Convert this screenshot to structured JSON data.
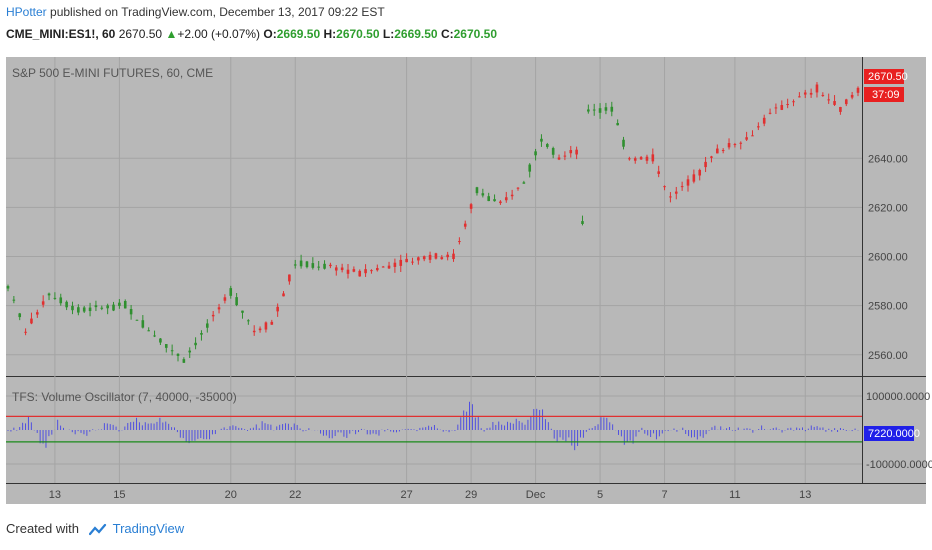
{
  "header": {
    "author": "HPotter",
    "published": " published on TradingView.com, December 13, 2017 09:22 EST",
    "symbol": "CME_MINI:ES1!, 60",
    "last": "2670.50",
    "change_arrow": "▲",
    "change": "+2.00 (+0.07%)",
    "o_label": "O:",
    "o_val": "2669.50",
    "h_label": "H:",
    "h_val": "2670.50",
    "l_label": "L:",
    "l_val": "2669.50",
    "c_label": "C:",
    "c_val": "2670.50"
  },
  "footer": {
    "created": "Created with",
    "brand": "TradingView"
  },
  "colors": {
    "up": "#2f8f2f",
    "down": "#e03030",
    "osc": "#5050e0",
    "upper": "#e03030",
    "lower": "#1a8a1a",
    "panel": "#b8b8b8",
    "grid": "#a4a4a4"
  },
  "chart_data": [
    {
      "type": "candlestick",
      "title": "S&P 500 E-MINI FUTURES, 60, CME",
      "y_ticks": [
        "2640.00",
        "2620.00",
        "2600.00",
        "2580.00",
        "2560.00"
      ],
      "y_tick_values": [
        2640,
        2620,
        2600,
        2580,
        2560
      ],
      "ylim": [
        2553,
        2680
      ],
      "price_label": "2670.50",
      "countdown_label": "37:09",
      "x_ticks": [
        "13",
        "15",
        "20",
        "22",
        "27",
        "29",
        "Dec",
        "5",
        "7",
        "11",
        "13"
      ],
      "x_tick_index": [
        8,
        19,
        38,
        49,
        68,
        79,
        90,
        101,
        112,
        124,
        136
      ],
      "n_bars": 146,
      "path": [
        [
          0,
          2588,
          1
        ],
        [
          3,
          2570,
          0
        ],
        [
          7,
          2585,
          1
        ],
        [
          12,
          2578,
          1
        ],
        [
          20,
          2580,
          1
        ],
        [
          24,
          2570,
          1
        ],
        [
          30,
          2558,
          1
        ],
        [
          35,
          2575,
          0
        ],
        [
          38,
          2586,
          1
        ],
        [
          42,
          2570,
          0
        ],
        [
          45,
          2573,
          0
        ],
        [
          49,
          2597,
          1
        ],
        [
          55,
          2596,
          0
        ],
        [
          60,
          2593,
          0
        ],
        [
          66,
          2597,
          0
        ],
        [
          72,
          2600,
          0
        ],
        [
          76,
          2600,
          0
        ],
        [
          80,
          2627,
          1
        ],
        [
          84,
          2621,
          0
        ],
        [
          88,
          2630,
          1
        ],
        [
          91,
          2648,
          1
        ],
        [
          94,
          2640,
          0
        ],
        [
          97,
          2643,
          0
        ],
        [
          98,
          2613,
          1
        ],
        [
          99,
          2660,
          1
        ],
        [
          103,
          2660,
          1
        ],
        [
          106,
          2640,
          0
        ],
        [
          110,
          2640,
          0
        ],
        [
          113,
          2624,
          0
        ],
        [
          117,
          2632,
          0
        ],
        [
          121,
          2643,
          0
        ],
        [
          126,
          2648,
          0
        ],
        [
          131,
          2660,
          0
        ],
        [
          138,
          2668,
          0
        ],
        [
          142,
          2660,
          0
        ],
        [
          145,
          2668,
          0
        ]
      ]
    },
    {
      "type": "bar",
      "title": "TFS: Volume Oscillator (7, 40000, -35000)",
      "y_ticks": [
        "100000.0000",
        "-100000.0000"
      ],
      "y_tick_values": [
        100000,
        -100000
      ],
      "ylim": [
        -150000,
        150000
      ],
      "upper_level": 40000,
      "lower_level": -35000,
      "value_label": "7220.0000",
      "spikes": [
        [
          4,
          45000
        ],
        [
          6,
          -78000
        ],
        [
          8,
          30000
        ],
        [
          13,
          -20000
        ],
        [
          17,
          20000
        ],
        [
          22,
          45000
        ],
        [
          26,
          40000
        ],
        [
          31,
          -50000
        ],
        [
          34,
          -30000
        ],
        [
          38,
          15000
        ],
        [
          44,
          25000
        ],
        [
          48,
          30000
        ],
        [
          55,
          -25000
        ],
        [
          58,
          -20000
        ],
        [
          63,
          -15000
        ],
        [
          72,
          20000
        ],
        [
          79,
          92000
        ],
        [
          84,
          30000
        ],
        [
          87,
          40000
        ],
        [
          91,
          105000
        ],
        [
          94,
          -40000
        ],
        [
          97,
          -60000
        ],
        [
          102,
          50000
        ],
        [
          106,
          -55000
        ],
        [
          111,
          -30000
        ],
        [
          118,
          -50000
        ],
        [
          122,
          12000
        ],
        [
          130,
          10000
        ],
        [
          138,
          12000
        ]
      ]
    }
  ]
}
